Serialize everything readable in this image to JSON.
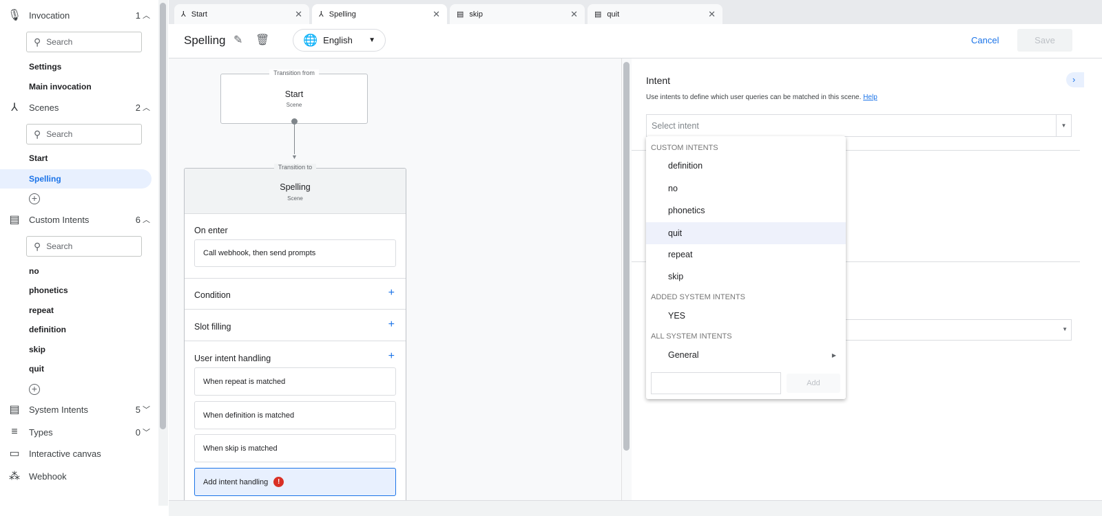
{
  "sidebar": {
    "invocation": {
      "label": "Invocation",
      "count": "1",
      "search_placeholder": "Search",
      "items": [
        "Settings",
        "Main invocation"
      ]
    },
    "scenes": {
      "label": "Scenes",
      "count": "2",
      "search_placeholder": "Search",
      "items": [
        "Start",
        "Spelling"
      ],
      "selected": "Spelling"
    },
    "custom_intents": {
      "label": "Custom Intents",
      "count": "6",
      "search_placeholder": "Search",
      "items": [
        "no",
        "phonetics",
        "repeat",
        "definition",
        "skip",
        "quit"
      ]
    },
    "system_intents": {
      "label": "System Intents",
      "count": "5"
    },
    "types": {
      "label": "Types",
      "count": "0"
    },
    "interactive_canvas": {
      "label": "Interactive canvas"
    },
    "webhook": {
      "label": "Webhook"
    }
  },
  "tabs": [
    {
      "label": "Start",
      "icon": "scene-icon"
    },
    {
      "label": "Spelling",
      "icon": "scene-icon",
      "active": true
    },
    {
      "label": "skip",
      "icon": "intent-icon"
    },
    {
      "label": "quit",
      "icon": "intent-icon"
    }
  ],
  "toolbar": {
    "title": "Spelling",
    "language": "English",
    "cancel": "Cancel",
    "save": "Save"
  },
  "canvas": {
    "from": {
      "caption": "Transition from",
      "name": "Start",
      "type": "Scene"
    },
    "to": {
      "caption": "Transition to",
      "name": "Spelling",
      "type": "Scene"
    },
    "on_enter": {
      "label": "On enter",
      "value": "Call webhook, then send prompts"
    },
    "condition": "Condition",
    "slot_filling": "Slot filling",
    "user_intent_handling": {
      "label": "User intent handling",
      "items": [
        "When repeat is matched",
        "When definition is matched",
        "When skip is matched"
      ],
      "add": "Add intent handling"
    }
  },
  "panel": {
    "title": "Intent",
    "description": "Use intents to define which user queries can be matched in this scene.",
    "help": "Help",
    "select_placeholder": "Select intent"
  },
  "dropdown": {
    "custom_header": "CUSTOM INTENTS",
    "custom": [
      "definition",
      "no",
      "phonetics",
      "quit",
      "repeat",
      "skip"
    ],
    "highlighted": "quit",
    "added_header": "ADDED SYSTEM INTENTS",
    "added": [
      "YES"
    ],
    "all_header": "ALL SYSTEM INTENTS",
    "all": [
      "General"
    ],
    "add_button": "Add",
    "new_intent_value": ""
  },
  "colors": {
    "accent": "#1a73e8",
    "selected_bg": "#e8f0fe",
    "error": "#d93025",
    "globe": "#9334e6"
  }
}
